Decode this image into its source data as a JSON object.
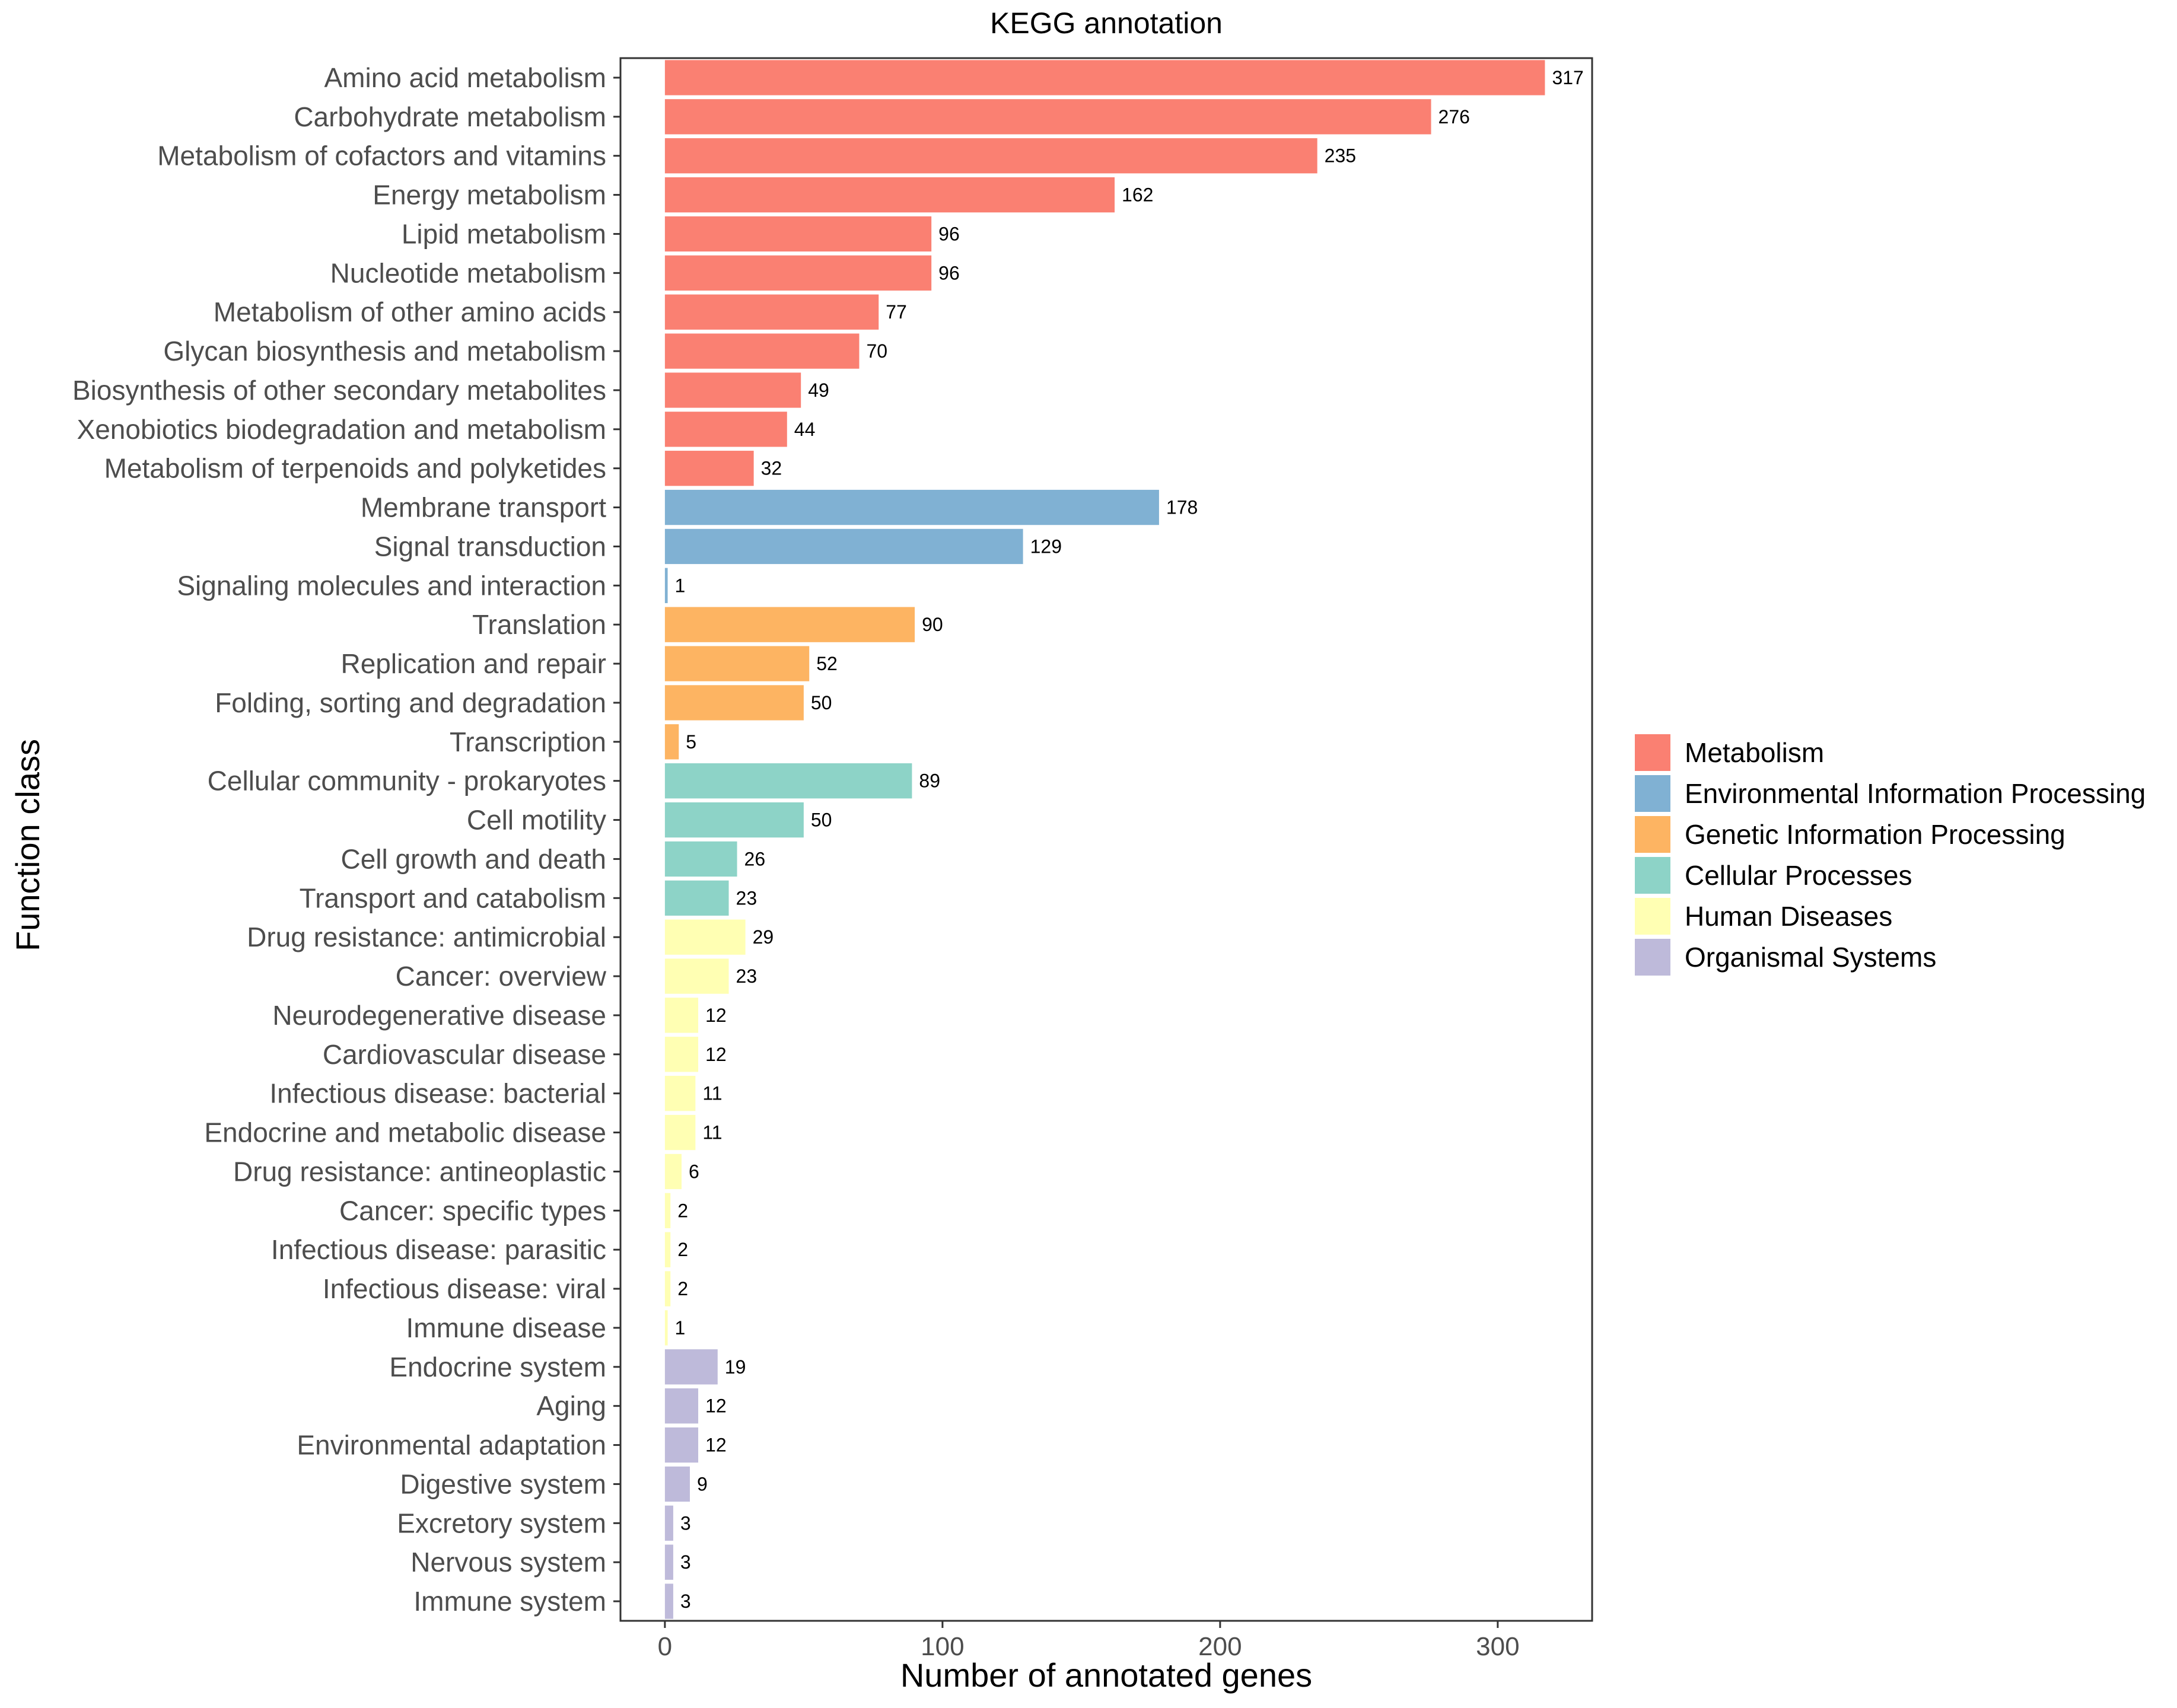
{
  "chart_data": {
    "type": "bar",
    "orientation": "horizontal",
    "title": "KEGG annotation",
    "xlabel": "Number of annotated genes",
    "ylabel": "Function class",
    "xlim": [
      -16,
      334
    ],
    "xticks": [
      0,
      100,
      200,
      300
    ],
    "grid": false,
    "legend_position": "right",
    "colors": {
      "Metabolism": "#FA8072",
      "Environmental Information Processing": "#80B1D3",
      "Genetic Information Processing": "#FDB462",
      "Cellular Processes": "#8DD3C7",
      "Human Diseases": "#FFFFB3",
      "Organismal Systems": "#BEBADA"
    },
    "legend": [
      "Metabolism",
      "Environmental Information Processing",
      "Genetic Information Processing",
      "Cellular Processes",
      "Human Diseases",
      "Organismal Systems"
    ],
    "categories": [
      "Amino acid metabolism",
      "Carbohydrate metabolism",
      "Metabolism of cofactors and vitamins",
      "Energy metabolism",
      "Lipid metabolism",
      "Nucleotide metabolism",
      "Metabolism of other amino acids",
      "Glycan biosynthesis and metabolism",
      "Biosynthesis of other secondary metabolites",
      "Xenobiotics biodegradation and metabolism",
      "Metabolism of terpenoids and polyketides",
      "Membrane transport",
      "Signal transduction",
      "Signaling molecules and interaction",
      "Translation",
      "Replication and repair",
      "Folding, sorting and degradation",
      "Transcription",
      "Cellular community - prokaryotes",
      "Cell motility",
      "Cell growth and death",
      "Transport and catabolism",
      "Drug resistance: antimicrobial",
      "Cancer: overview",
      "Neurodegenerative disease",
      "Cardiovascular disease",
      "Infectious disease: bacterial",
      "Endocrine and metabolic disease",
      "Drug resistance: antineoplastic",
      "Cancer: specific types",
      "Infectious disease: parasitic",
      "Infectious disease: viral",
      "Immune disease",
      "Endocrine system",
      "Aging",
      "Environmental adaptation",
      "Digestive system",
      "Excretory system",
      "Nervous system",
      "Immune system"
    ],
    "values": [
      317,
      276,
      235,
      162,
      96,
      96,
      77,
      70,
      49,
      44,
      32,
      178,
      129,
      1,
      90,
      52,
      50,
      5,
      89,
      50,
      26,
      23,
      29,
      23,
      12,
      12,
      11,
      11,
      6,
      2,
      2,
      2,
      1,
      19,
      12,
      12,
      9,
      3,
      3,
      3
    ],
    "groups": [
      "Metabolism",
      "Metabolism",
      "Metabolism",
      "Metabolism",
      "Metabolism",
      "Metabolism",
      "Metabolism",
      "Metabolism",
      "Metabolism",
      "Metabolism",
      "Metabolism",
      "Environmental Information Processing",
      "Environmental Information Processing",
      "Environmental Information Processing",
      "Genetic Information Processing",
      "Genetic Information Processing",
      "Genetic Information Processing",
      "Genetic Information Processing",
      "Cellular Processes",
      "Cellular Processes",
      "Cellular Processes",
      "Cellular Processes",
      "Human Diseases",
      "Human Diseases",
      "Human Diseases",
      "Human Diseases",
      "Human Diseases",
      "Human Diseases",
      "Human Diseases",
      "Human Diseases",
      "Human Diseases",
      "Human Diseases",
      "Human Diseases",
      "Organismal Systems",
      "Organismal Systems",
      "Organismal Systems",
      "Organismal Systems",
      "Organismal Systems",
      "Organismal Systems",
      "Organismal Systems"
    ]
  }
}
